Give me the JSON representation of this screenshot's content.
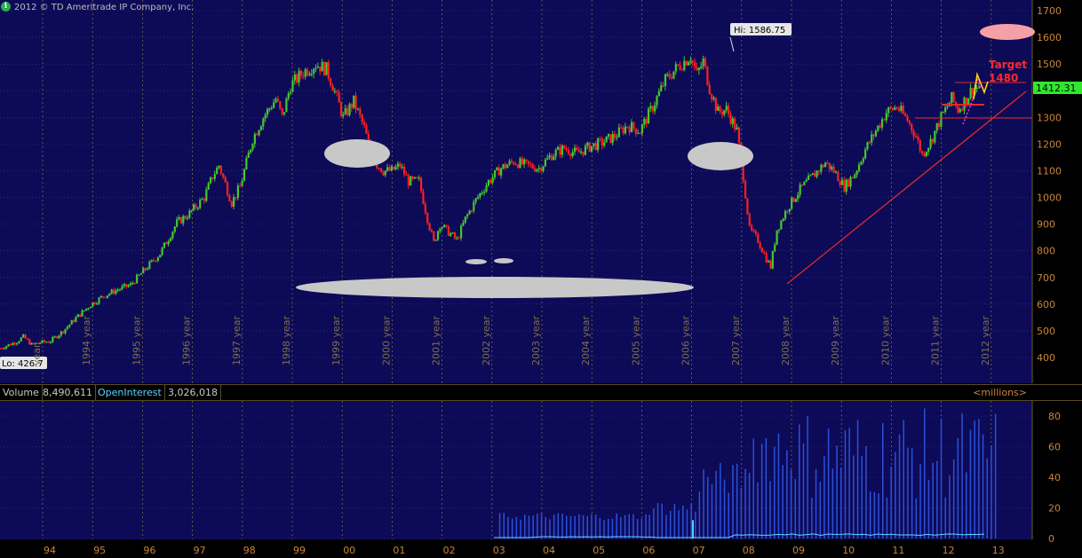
{
  "header": {
    "copyright": "2012 © TD Ameritrade IP Company, Inc.",
    "info_icon": "info-icon"
  },
  "colors": {
    "background": "#000000",
    "plot": "#0d0a57",
    "up": "#45c82d",
    "down": "#ff1f1f",
    "axis_text": "#c9853b",
    "volume": "#2c50d8",
    "open_interest": "#5ad8ff",
    "trendline": "#e02b2b"
  },
  "labels": {
    "hi": "Hi: 1586.75",
    "lo": "Lo: 426.7",
    "target_line1": "Target",
    "target_line2": "1480",
    "last_price": "1412.31"
  },
  "volume_header": {
    "volume_label": "Volume",
    "volume_value": "8,490,611",
    "oi_label": "OpenInterest",
    "oi_value": "3,026,018",
    "units": "<millions>"
  },
  "chart_data": [
    {
      "type": "candlestick",
      "ylim": [
        330,
        1735
      ],
      "y_ticks": [
        400,
        500,
        600,
        700,
        800,
        900,
        1000,
        1100,
        1200,
        1300,
        1400,
        1500,
        1600,
        1700
      ],
      "year_labels": [
        "year",
        "1994 year",
        "1995 year",
        "1996 year",
        "1997 year",
        "1998 year",
        "1999 year",
        "2000 year",
        "2001 year",
        "2002 year",
        "2003 year",
        "2004 year",
        "2005 year",
        "2006 year",
        "2007 year",
        "2008 year",
        "2009 year",
        "2010 year",
        "2011 year",
        "2012 year"
      ],
      "anchors": [
        [
          0,
          435
        ],
        [
          4,
          447
        ],
        [
          8,
          460
        ],
        [
          11,
          478
        ],
        [
          15,
          448
        ],
        [
          19,
          456
        ],
        [
          24,
          462
        ],
        [
          30,
          500
        ],
        [
          36,
          548
        ],
        [
          43,
          598
        ],
        [
          49,
          630
        ],
        [
          56,
          655
        ],
        [
          62,
          672
        ],
        [
          70,
          740
        ],
        [
          76,
          790
        ],
        [
          84,
          905
        ],
        [
          90,
          940
        ],
        [
          97,
          1000
        ],
        [
          101,
          1080
        ],
        [
          104,
          1120
        ],
        [
          110,
          980
        ],
        [
          114,
          1040
        ],
        [
          120,
          1220
        ],
        [
          125,
          1300
        ],
        [
          131,
          1370
        ],
        [
          134,
          1300
        ],
        [
          138,
          1420
        ],
        [
          144,
          1470
        ],
        [
          150,
          1500
        ],
        [
          155,
          1480
        ],
        [
          158,
          1420
        ],
        [
          163,
          1300
        ],
        [
          168,
          1360
        ],
        [
          173,
          1260
        ],
        [
          177,
          1140
        ],
        [
          182,
          1100
        ],
        [
          186,
          1100
        ],
        [
          190,
          1120
        ],
        [
          194,
          1060
        ],
        [
          199,
          1060
        ],
        [
          203,
          920
        ],
        [
          206,
          830
        ],
        [
          209,
          900
        ],
        [
          213,
          870
        ],
        [
          217,
          840
        ],
        [
          221,
          920
        ],
        [
          226,
          990
        ],
        [
          232,
          1060
        ],
        [
          238,
          1110
        ],
        [
          244,
          1135
        ],
        [
          250,
          1120
        ],
        [
          256,
          1110
        ],
        [
          262,
          1160
        ],
        [
          268,
          1185
        ],
        [
          274,
          1165
        ],
        [
          280,
          1190
        ],
        [
          286,
          1205
        ],
        [
          292,
          1230
        ],
        [
          298,
          1270
        ],
        [
          304,
          1250
        ],
        [
          310,
          1340
        ],
        [
          316,
          1440
        ],
        [
          322,
          1490
        ],
        [
          328,
          1530
        ],
        [
          331,
          1460
        ],
        [
          334,
          1510
        ],
        [
          337,
          1410
        ],
        [
          341,
          1320
        ],
        [
          345,
          1330
        ],
        [
          350,
          1250
        ],
        [
          353,
          1080
        ],
        [
          356,
          880
        ],
        [
          360,
          840
        ],
        [
          364,
          770
        ],
        [
          366,
          740
        ],
        [
          369,
          880
        ],
        [
          374,
          960
        ],
        [
          380,
          1030
        ],
        [
          386,
          1080
        ],
        [
          392,
          1130
        ],
        [
          396,
          1100
        ],
        [
          401,
          1040
        ],
        [
          406,
          1090
        ],
        [
          411,
          1180
        ],
        [
          416,
          1250
        ],
        [
          421,
          1320
        ],
        [
          426,
          1340
        ],
        [
          431,
          1290
        ],
        [
          435,
          1230
        ],
        [
          438,
          1160
        ],
        [
          442,
          1210
        ],
        [
          447,
          1300
        ],
        [
          452,
          1370
        ],
        [
          455,
          1330
        ],
        [
          459,
          1370
        ],
        [
          462,
          1410
        ],
        [
          465,
          1412
        ]
      ],
      "open_interest_series_present": true
    },
    {
      "type": "bar",
      "series": "volume",
      "ylim": [
        0,
        90
      ],
      "y_ticks": [
        0,
        20,
        40,
        60,
        80
      ],
      "x_labels": [
        "94",
        "95",
        "96",
        "97",
        "98",
        "99",
        "00",
        "01",
        "02",
        "03",
        "04",
        "05",
        "06",
        "07",
        "08",
        "09",
        "10",
        "11",
        "12",
        "13"
      ],
      "segments": [
        {
          "from_year": "03",
          "to_year": "06",
          "approx_range": [
            12,
            17
          ]
        },
        {
          "from_year": "06",
          "to_year": "07",
          "approx_range": [
            15,
            25
          ]
        },
        {
          "from_year": "07",
          "to_year": "08",
          "approx_range": [
            28,
            50
          ]
        },
        {
          "from_year": "08",
          "to_year": "09",
          "approx_range": [
            35,
            85
          ]
        },
        {
          "from_year": "09",
          "to_year": "13",
          "approx_range": [
            25,
            85
          ]
        }
      ]
    }
  ]
}
